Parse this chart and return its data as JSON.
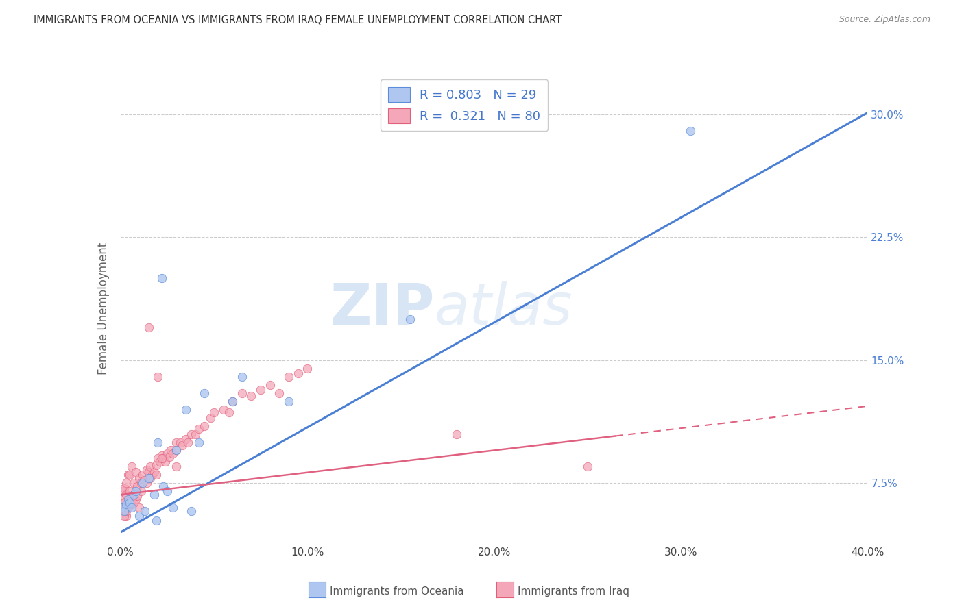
{
  "title": "IMMIGRANTS FROM OCEANIA VS IMMIGRANTS FROM IRAQ FEMALE UNEMPLOYMENT CORRELATION CHART",
  "source": "Source: ZipAtlas.com",
  "ylabel": "Female Unemployment",
  "yticks": [
    "7.5%",
    "15.0%",
    "22.5%",
    "30.0%"
  ],
  "ytick_values": [
    0.075,
    0.15,
    0.225,
    0.3
  ],
  "xtick_values": [
    0.0,
    0.1,
    0.2,
    0.3,
    0.4
  ],
  "xmin": 0.0,
  "xmax": 0.4,
  "ymin": 0.038,
  "ymax": 0.325,
  "oceania_color": "#aec6f0",
  "iraq_color": "#f4a7b9",
  "oceania_edge_color": "#5b8dd9",
  "iraq_edge_color": "#e0607a",
  "oceania_line_color": "#4a7fd4",
  "iraq_line_color": "#e06080",
  "oceania_R": 0.803,
  "oceania_N": 29,
  "iraq_R": 0.321,
  "iraq_N": 80,
  "legend_label_color": "#4477cc",
  "watermark_zip": "ZIP",
  "watermark_atlas": "atlas",
  "background_color": "#ffffff",
  "grid_color": "#cccccc",
  "oceania_line_intercept": 0.045,
  "oceania_line_slope": 0.64,
  "iraq_line_intercept": 0.068,
  "iraq_line_slope": 0.135,
  "iraq_line_xmax": 0.265,
  "oceania_x": [
    0.001,
    0.002,
    0.003,
    0.004,
    0.005,
    0.006,
    0.007,
    0.008,
    0.01,
    0.012,
    0.013,
    0.015,
    0.018,
    0.019,
    0.02,
    0.022,
    0.023,
    0.025,
    0.028,
    0.03,
    0.035,
    0.038,
    0.042,
    0.045,
    0.06,
    0.065,
    0.09,
    0.155,
    0.305
  ],
  "oceania_y": [
    0.06,
    0.058,
    0.062,
    0.065,
    0.063,
    0.06,
    0.068,
    0.07,
    0.055,
    0.075,
    0.058,
    0.078,
    0.068,
    0.052,
    0.1,
    0.2,
    0.073,
    0.07,
    0.06,
    0.095,
    0.12,
    0.058,
    0.1,
    0.13,
    0.125,
    0.14,
    0.125,
    0.175,
    0.29
  ],
  "iraq_x": [
    0.001,
    0.001,
    0.001,
    0.002,
    0.002,
    0.002,
    0.003,
    0.003,
    0.003,
    0.004,
    0.004,
    0.005,
    0.005,
    0.005,
    0.006,
    0.006,
    0.007,
    0.007,
    0.008,
    0.008,
    0.009,
    0.01,
    0.01,
    0.011,
    0.012,
    0.013,
    0.014,
    0.015,
    0.015,
    0.016,
    0.017,
    0.018,
    0.019,
    0.02,
    0.02,
    0.021,
    0.022,
    0.023,
    0.024,
    0.025,
    0.026,
    0.027,
    0.028,
    0.03,
    0.03,
    0.032,
    0.033,
    0.035,
    0.036,
    0.038,
    0.04,
    0.042,
    0.045,
    0.048,
    0.05,
    0.055,
    0.058,
    0.06,
    0.065,
    0.07,
    0.075,
    0.08,
    0.085,
    0.09,
    0.095,
    0.1,
    0.002,
    0.003,
    0.004,
    0.005,
    0.007,
    0.009,
    0.011,
    0.014,
    0.016,
    0.019,
    0.022,
    0.03,
    0.18,
    0.25
  ],
  "iraq_y": [
    0.06,
    0.065,
    0.07,
    0.058,
    0.063,
    0.072,
    0.055,
    0.068,
    0.075,
    0.06,
    0.08,
    0.065,
    0.07,
    0.08,
    0.062,
    0.085,
    0.068,
    0.075,
    0.065,
    0.082,
    0.073,
    0.06,
    0.078,
    0.075,
    0.08,
    0.077,
    0.083,
    0.082,
    0.17,
    0.085,
    0.08,
    0.082,
    0.086,
    0.09,
    0.14,
    0.088,
    0.092,
    0.09,
    0.088,
    0.093,
    0.091,
    0.095,
    0.093,
    0.095,
    0.1,
    0.1,
    0.098,
    0.102,
    0.1,
    0.105,
    0.105,
    0.108,
    0.11,
    0.115,
    0.118,
    0.12,
    0.118,
    0.125,
    0.13,
    0.128,
    0.132,
    0.135,
    0.13,
    0.14,
    0.142,
    0.145,
    0.055,
    0.058,
    0.062,
    0.064,
    0.063,
    0.067,
    0.07,
    0.075,
    0.078,
    0.08,
    0.09,
    0.085,
    0.105,
    0.085
  ]
}
